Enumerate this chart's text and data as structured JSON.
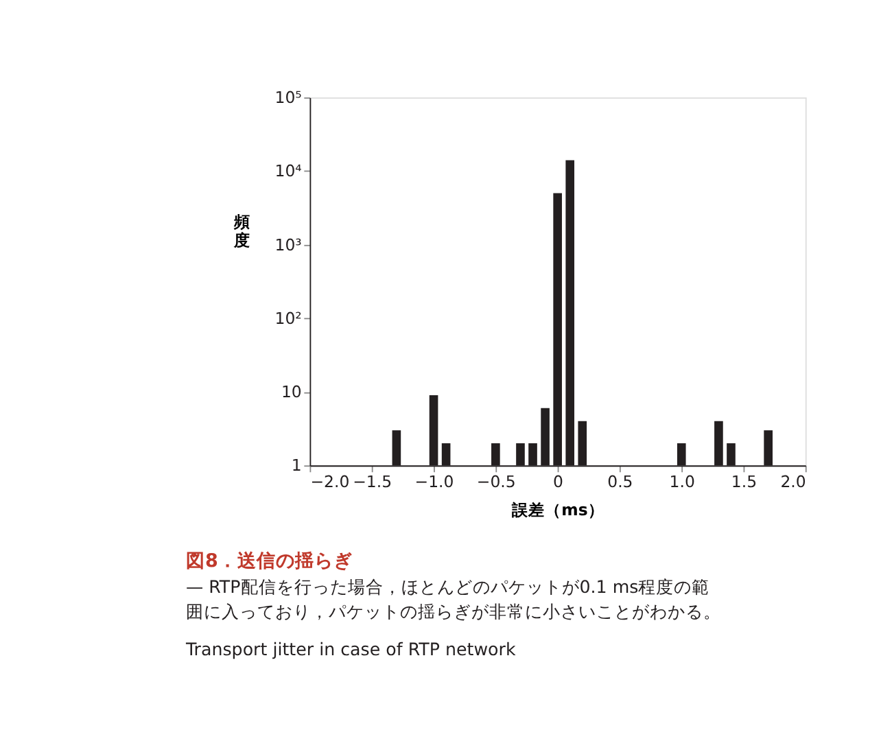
{
  "chart_data": {
    "type": "bar",
    "title": "図8．送信の揺らぎ",
    "annotations": [
      "— RTP配信を行った場合，ほとんどのパケットが0.1 ms程度の範囲に入っており，パケットの揺らぎが非常に小さいことがわかる。",
      "Transport jitter in case of RTP network"
    ],
    "xlabel": "誤差（ms）",
    "ylabel": "頻度",
    "x": [
      -1.3,
      -1.0,
      -0.9,
      -0.5,
      -0.3,
      -0.2,
      -0.1,
      0,
      0.1,
      0.2,
      1.0,
      1.3,
      1.4,
      1.7
    ],
    "values": [
      3,
      9,
      2,
      2,
      2,
      2,
      6,
      5000,
      14000,
      4,
      2,
      4,
      2,
      3
    ],
    "color": "#231f20",
    "log": true,
    "grid": false,
    "xlim": [
      -2,
      2
    ],
    "xticks": [
      {
        "value": -2,
        "label": "−2.0"
      },
      {
        "value": -1.5,
        "label": "−1.5"
      },
      {
        "value": -1,
        "label": "−1.0"
      },
      {
        "value": -0.5,
        "label": "−0.5"
      },
      {
        "value": 0,
        "label": "0"
      },
      0.5,
      {
        "value": 1,
        "label": "1.0"
      },
      1.5,
      {
        "value": 2,
        "label": "2.0"
      }
    ],
    "ylim": [
      1,
      100000
    ],
    "yticks": [
      1,
      10,
      {
        "value": 100,
        "label": "10²"
      },
      {
        "value": 1000,
        "label": "10³"
      },
      {
        "value": 10000,
        "label": "10⁴"
      },
      {
        "value": 100000,
        "label": "10⁵"
      }
    ]
  }
}
